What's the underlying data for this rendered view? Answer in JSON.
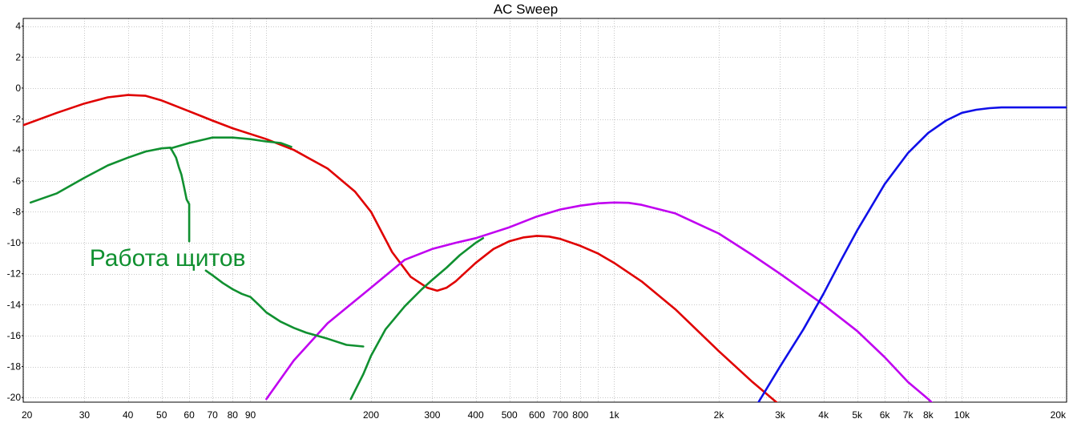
{
  "chart_data": {
    "type": "line",
    "title": "AC Sweep",
    "xlabel": "",
    "ylabel": "",
    "x_scale": "log",
    "xlim": [
      20,
      20000
    ],
    "ylim": [
      -20.3,
      4.5
    ],
    "grid": true,
    "x_tick_labels": [
      {
        "value": 20,
        "label": "20"
      },
      {
        "value": 30,
        "label": "30"
      },
      {
        "value": 40,
        "label": "40"
      },
      {
        "value": 50,
        "label": "50"
      },
      {
        "value": 60,
        "label": "60"
      },
      {
        "value": 70,
        "label": "70"
      },
      {
        "value": 80,
        "label": "80"
      },
      {
        "value": 90,
        "label": "90"
      },
      {
        "value": 200,
        "label": "200"
      },
      {
        "value": 300,
        "label": "300"
      },
      {
        "value": 400,
        "label": "400"
      },
      {
        "value": 500,
        "label": "500"
      },
      {
        "value": 600,
        "label": "600"
      },
      {
        "value": 700,
        "label": "700"
      },
      {
        "value": 800,
        "label": "800"
      },
      {
        "value": 1000,
        "label": "1k"
      },
      {
        "value": 2000,
        "label": "2k"
      },
      {
        "value": 3000,
        "label": "3k"
      },
      {
        "value": 4000,
        "label": "4k"
      },
      {
        "value": 5000,
        "label": "5k"
      },
      {
        "value": 6000,
        "label": "6k"
      },
      {
        "value": 7000,
        "label": "7k"
      },
      {
        "value": 8000,
        "label": "8k"
      },
      {
        "value": 10000,
        "label": "10k"
      },
      {
        "value": 20000,
        "label": "20k"
      }
    ],
    "y_ticks": [
      4,
      2,
      0,
      -2,
      -4,
      -6,
      -8,
      -10,
      -12,
      -14,
      -16,
      -18,
      -20
    ],
    "series": [
      {
        "color": "#e00000",
        "x": [
          20,
          25,
          30,
          35,
          40,
          45,
          50,
          60,
          70,
          80,
          100,
          120,
          150,
          180,
          200,
          230,
          260,
          290,
          310,
          330,
          350,
          400,
          450,
          500,
          550,
          600,
          650,
          700,
          800,
          900,
          1000,
          1200,
          1500,
          2000,
          2500,
          3000,
          3300
        ],
        "y": [
          -2.4,
          -1.6,
          -1.0,
          -0.6,
          -0.45,
          -0.5,
          -0.8,
          -1.5,
          -2.1,
          -2.6,
          -3.3,
          -4.0,
          -5.2,
          -6.7,
          -8.0,
          -10.6,
          -12.2,
          -12.9,
          -13.1,
          -12.9,
          -12.5,
          -11.3,
          -10.4,
          -9.9,
          -9.65,
          -9.55,
          -9.6,
          -9.75,
          -10.2,
          -10.7,
          -11.3,
          -12.5,
          -14.3,
          -17.0,
          -19.0,
          -20.5,
          -21.5
        ]
      },
      {
        "color": "#c000f0",
        "x": [
          100,
          120,
          150,
          200,
          250,
          300,
          350,
          400,
          500,
          600,
          700,
          800,
          900,
          1000,
          1100,
          1200,
          1500,
          2000,
          2500,
          3000,
          4000,
          5000,
          6000,
          7000,
          8000,
          9000
        ],
        "y": [
          -20.1,
          -17.6,
          -15.2,
          -12.9,
          -11.1,
          -10.4,
          -10.0,
          -9.7,
          -9.0,
          -8.3,
          -7.85,
          -7.6,
          -7.45,
          -7.4,
          -7.42,
          -7.55,
          -8.1,
          -9.4,
          -10.8,
          -12.0,
          -14.0,
          -15.7,
          -17.4,
          -19.0,
          -20.1,
          -21.2
        ]
      },
      {
        "color": "#1010e8",
        "x": [
          2600,
          3000,
          3500,
          4000,
          4500,
          5000,
          6000,
          7000,
          8000,
          9000,
          10000,
          11000,
          12000,
          13000,
          15000,
          20000
        ],
        "y": [
          -20.3,
          -18.0,
          -15.6,
          -13.3,
          -11.1,
          -9.2,
          -6.2,
          -4.2,
          -2.9,
          -2.1,
          -1.6,
          -1.4,
          -1.3,
          -1.25,
          -1.25,
          -1.25
        ]
      },
      {
        "color": "#109030",
        "x": [
          21,
          25,
          30,
          35,
          40,
          45,
          50,
          53,
          55,
          56,
          57,
          58,
          59,
          60,
          60
        ],
        "y": [
          -7.4,
          -6.8,
          -5.8,
          -5.0,
          -4.5,
          -4.1,
          -3.9,
          -3.85,
          -4.5,
          -5.1,
          -5.6,
          -6.4,
          -7.2,
          -7.5,
          -9.9
        ]
      },
      {
        "color": "#109030",
        "x": [
          53,
          60,
          70,
          80,
          90,
          100,
          110,
          118
        ],
        "y": [
          -3.9,
          -3.55,
          -3.2,
          -3.2,
          -3.3,
          -3.45,
          -3.55,
          -3.8
        ]
      },
      {
        "color": "#109030",
        "x": [
          67,
          70,
          75,
          80,
          85,
          90,
          95,
          100,
          110,
          120,
          130,
          150,
          170,
          190
        ],
        "y": [
          -11.8,
          -12.1,
          -12.6,
          -13.0,
          -13.3,
          -13.5,
          -14.0,
          -14.5,
          -15.1,
          -15.5,
          -15.8,
          -16.2,
          -16.6,
          -16.7
        ]
      },
      {
        "color": "#109030",
        "x": [
          175,
          190,
          200,
          220,
          250,
          280,
          300,
          330,
          360,
          400,
          420
        ],
        "y": [
          -20.1,
          -18.5,
          -17.3,
          -15.6,
          -14.1,
          -13.0,
          -12.4,
          -11.6,
          -10.8,
          -10.0,
          -9.7
        ]
      }
    ],
    "annotations": [
      {
        "text": "Работа щитов",
        "x": 52,
        "y": -11.8,
        "color": "#109030"
      }
    ]
  }
}
